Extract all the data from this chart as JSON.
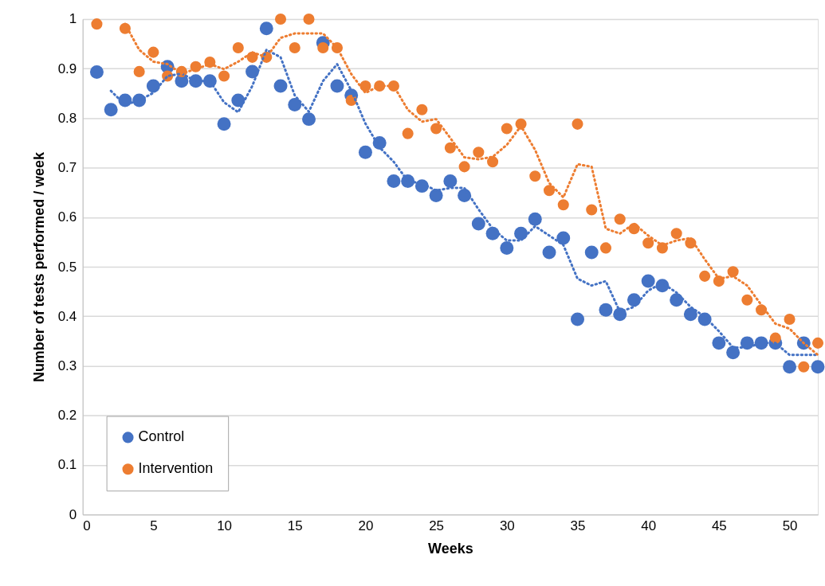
{
  "chart_data": {
    "type": "scatter",
    "xlabel": "Weeks",
    "ylabel": "Number of tests performed / week",
    "x": [
      1,
      2,
      3,
      4,
      5,
      6,
      7,
      8,
      9,
      10,
      11,
      12,
      13,
      14,
      15,
      16,
      17,
      18,
      19,
      20,
      21,
      22,
      23,
      24,
      25,
      26,
      27,
      28,
      29,
      30,
      31,
      32,
      33,
      34,
      35,
      36,
      37,
      38,
      39,
      40,
      41,
      42,
      43,
      44,
      45,
      46,
      47,
      48,
      49,
      50,
      51,
      52
    ],
    "xlim": [
      0,
      52
    ],
    "xticks": [
      0,
      5,
      10,
      15,
      20,
      25,
      30,
      35,
      40,
      45,
      50
    ],
    "ylim": [
      0,
      1
    ],
    "yticks": [
      0,
      0.1,
      0.2,
      0.3,
      0.4,
      0.5,
      0.6,
      0.7,
      0.8,
      0.9,
      1
    ],
    "grid": "y",
    "legend": "bottom left",
    "marker": "circle",
    "series": [
      {
        "name": "Control",
        "color": "#4472c4",
        "values": [
          0.893,
          0.817,
          0.836,
          0.836,
          0.865,
          0.904,
          0.875,
          0.875,
          0.875,
          0.788,
          0.836,
          0.894,
          0.981,
          0.865,
          0.827,
          0.798,
          0.952,
          0.865,
          0.846,
          0.731,
          0.75,
          0.673,
          0.673,
          0.663,
          0.644,
          0.673,
          0.644,
          0.587,
          0.567,
          0.538,
          0.567,
          0.596,
          0.529,
          0.558,
          0.394,
          0.529,
          0.413,
          0.404,
          0.433,
          0.471,
          0.462,
          0.433,
          0.404,
          0.394,
          0.346,
          0.327,
          0.346,
          0.346,
          0.346,
          0.298,
          0.346,
          0.298
        ]
      },
      {
        "name": "Intervention",
        "color": "#ed7d31",
        "values": [
          0.99,
          null,
          0.981,
          0.894,
          0.933,
          0.885,
          0.894,
          0.904,
          0.913,
          0.885,
          0.942,
          0.923,
          0.923,
          1.0,
          0.942,
          1.0,
          0.942,
          0.942,
          0.836,
          0.865,
          0.865,
          0.865,
          0.769,
          0.817,
          0.779,
          0.74,
          0.702,
          0.731,
          0.712,
          0.779,
          0.788,
          0.683,
          0.654,
          0.625,
          0.788,
          0.615,
          0.538,
          0.596,
          0.577,
          0.548,
          0.538,
          0.567,
          0.548,
          0.481,
          0.471,
          0.49,
          0.433,
          0.413,
          0.356,
          0.394,
          0.298,
          0.346
        ]
      },
      {
        "color": "#4472c4",
        "type": "line",
        "marker": "none",
        "line_style": "dotted",
        "x": [
          2,
          3,
          4,
          5,
          6,
          7,
          8,
          9,
          10,
          11,
          12,
          13,
          14,
          15,
          16,
          17,
          18,
          19,
          20,
          21,
          22,
          23,
          24,
          25,
          26,
          27,
          28,
          29,
          30,
          31,
          32,
          33,
          34,
          35,
          36,
          37,
          38,
          39,
          40,
          41,
          42,
          43,
          44,
          45,
          46,
          47,
          48,
          49,
          50,
          51,
          52
        ],
        "values": [
          0.855,
          0.827,
          0.836,
          0.851,
          0.885,
          0.89,
          0.875,
          0.875,
          0.832,
          0.812,
          0.865,
          0.938,
          0.923,
          0.846,
          0.813,
          0.875,
          0.909,
          0.856,
          0.789,
          0.741,
          0.712,
          0.673,
          0.668,
          0.654,
          0.659,
          0.659,
          0.616,
          0.577,
          0.553,
          0.553,
          0.582,
          0.563,
          0.544,
          0.476,
          0.462,
          0.471,
          0.409,
          0.419,
          0.452,
          0.467,
          0.448,
          0.419,
          0.399,
          0.37,
          0.337,
          0.337,
          0.346,
          0.346,
          0.322,
          0.322,
          0.322
        ]
      },
      {
        "color": "#ed7d31",
        "type": "line",
        "marker": "none",
        "line_style": "dotted",
        "x": [
          3,
          4,
          5,
          6,
          7,
          8,
          9,
          10,
          11,
          12,
          13,
          14,
          15,
          16,
          17,
          18,
          19,
          20,
          21,
          22,
          23,
          24,
          25,
          26,
          27,
          28,
          29,
          30,
          31,
          32,
          33,
          34,
          35,
          36,
          37,
          38,
          39,
          40,
          41,
          42,
          43,
          44,
          45,
          46,
          47,
          48,
          49,
          50,
          51,
          52
        ],
        "values": [
          0.99,
          0.938,
          0.914,
          0.909,
          0.89,
          0.899,
          0.909,
          0.899,
          0.914,
          0.933,
          0.923,
          0.962,
          0.971,
          0.971,
          0.971,
          0.942,
          0.889,
          0.851,
          0.865,
          0.865,
          0.817,
          0.793,
          0.798,
          0.76,
          0.721,
          0.717,
          0.722,
          0.746,
          0.784,
          0.736,
          0.669,
          0.64,
          0.707,
          0.702,
          0.577,
          0.567,
          0.587,
          0.563,
          0.543,
          0.553,
          0.558,
          0.515,
          0.476,
          0.481,
          0.462,
          0.423,
          0.385,
          0.375,
          0.346,
          0.322
        ]
      }
    ]
  }
}
